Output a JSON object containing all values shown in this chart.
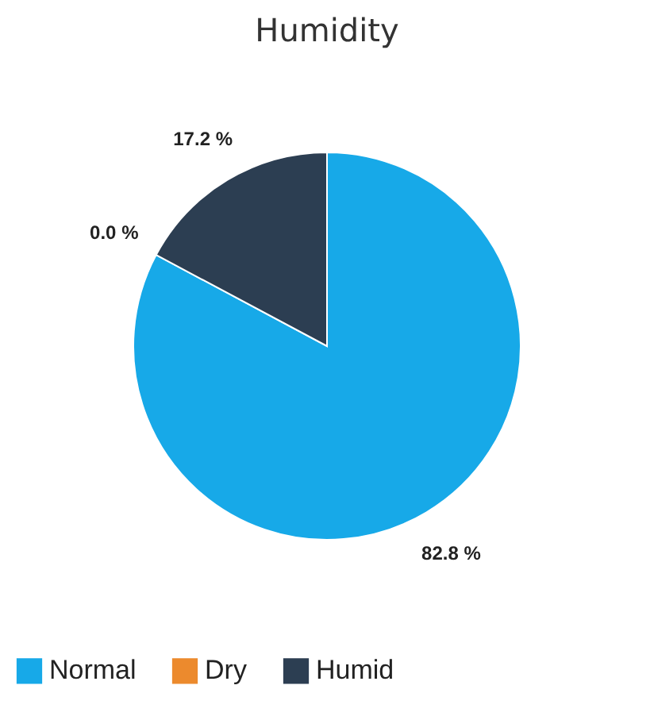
{
  "chart_data": {
    "type": "pie",
    "title": "Humidity",
    "categories": [
      "Normal",
      "Dry",
      "Humid"
    ],
    "values": [
      82.8,
      0.0,
      17.2
    ],
    "colors": [
      "#17a9e8",
      "#ec8a2d",
      "#2c3e52"
    ],
    "value_labels": [
      "82.8 %",
      "0.0 %",
      "17.2 %"
    ],
    "legend": "bottom"
  }
}
